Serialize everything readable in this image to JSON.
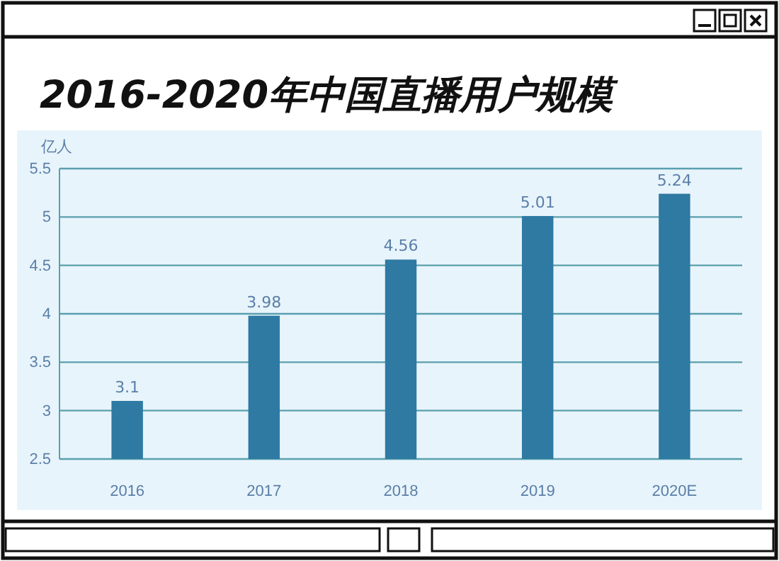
{
  "chart_data": {
    "type": "bar",
    "title": "2016-2020年中国直播用户规模",
    "ylabel": "亿人",
    "categories": [
      "2016",
      "2017",
      "2018",
      "2019",
      "2020E"
    ],
    "values": [
      3.1,
      3.98,
      4.56,
      5.01,
      5.24
    ],
    "color": "#2e7aa3",
    "ylim": [
      2.5,
      5.5
    ],
    "yticks": [
      2.5,
      3,
      3.5,
      4,
      4.5,
      5,
      5.5
    ],
    "grid": "y",
    "data_labels": true
  }
}
